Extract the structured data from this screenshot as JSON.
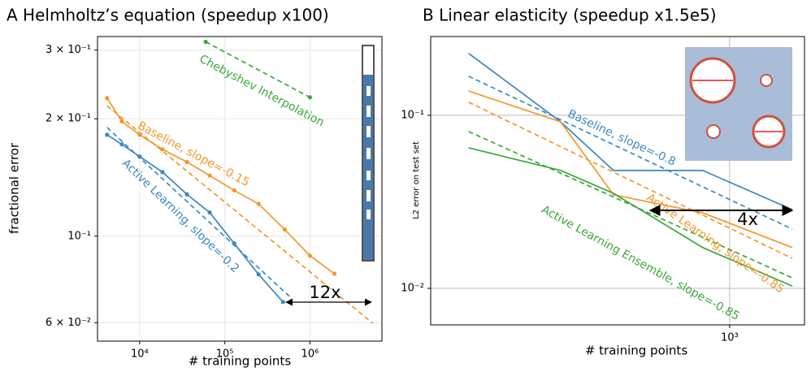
{
  "chart_data": [
    {
      "type": "line",
      "title": "A Helmholtz’s equation (speedup x100)",
      "xlabel": "# training points",
      "ylabel": "fractional error",
      "xscale": "log",
      "yscale": "log",
      "xlim": [
        3200,
        7000000
      ],
      "ylim": [
        0.0538,
        0.325
      ],
      "xticks": [
        {
          "value": 10000,
          "label": "10⁴"
        },
        {
          "value": 100000,
          "label": "10⁵"
        },
        {
          "value": 1000000,
          "label": "10⁶"
        }
      ],
      "yticks": [
        {
          "value": 0.06,
          "label": "6 × 10⁻²"
        },
        {
          "value": 0.1,
          "label": "10⁻¹"
        },
        {
          "value": 0.2,
          "label": "2 × 10⁻¹"
        },
        {
          "value": 0.3,
          "label": "3 × 10⁻¹"
        }
      ],
      "grid": true,
      "series": [
        {
          "color": "#3b88c4",
          "style": "solid",
          "markers": true,
          "x": [
            4140,
            6170,
            10000,
            18500,
            35900,
            66500,
            129000,
            249000,
            483000
          ],
          "values": [
            0.182,
            0.172,
            0.16,
            0.146,
            0.128,
            0.115,
            0.0958,
            0.0798,
            0.0678
          ]
        },
        {
          "color": "#f5962a",
          "style": "solid",
          "markers": true,
          "x": [
            4140,
            6170,
            10000,
            18500,
            35900,
            66500,
            129000,
            249000,
            505000,
            1000000,
            1940000
          ],
          "values": [
            0.226,
            0.197,
            0.182,
            0.167,
            0.155,
            0.143,
            0.131,
            0.121,
            0.104,
            0.0891,
            0.0801
          ]
        },
        {
          "color": "#3b88c4",
          "style": "dashed",
          "markers": false,
          "x": [
            4140,
            589000
          ],
          "values": [
            0.19,
            0.0697
          ]
        },
        {
          "color": "#f5962a",
          "style": "dashed",
          "markers": false,
          "x": [
            4140,
            5460000
          ],
          "values": [
            0.216,
            0.0598
          ]
        },
        {
          "color": "#3aa83a",
          "style": "dashed",
          "markers": true,
          "x": [
            59600,
            1000000
          ],
          "values": [
            0.315,
            0.227
          ]
        }
      ],
      "annotations": [
        "Chebyshev Interpolation",
        "Baseline, slope=-0.15",
        "Active Learning, slope=-0.2",
        "12x"
      ]
    },
    {
      "type": "line",
      "title": "B Linear elasticity (speedup x1.5e5)",
      "xlabel": "# training points",
      "ylabel": "L2 error on test set",
      "xscale": "log",
      "yscale": "log",
      "xlim": [
        184,
        1528
      ],
      "ylim": [
        0.00615,
        0.285
      ],
      "xticks": [
        {
          "value": 1000,
          "label": "10³"
        }
      ],
      "yticks": [
        {
          "value": 0.01,
          "label": "10⁻²"
        },
        {
          "value": 0.1,
          "label": "10⁻¹"
        }
      ],
      "grid": true,
      "series": [
        {
          "color": "#3b88c4",
          "style": "solid",
          "markers": false,
          "x": [
            228,
            384,
            518,
            859,
            1426
          ],
          "values": [
            0.228,
            0.0917,
            0.048,
            0.048,
            0.0285
          ]
        },
        {
          "color": "#3b88c4",
          "style": "dashed",
          "markers": false,
          "x": [
            228,
            1426
          ],
          "values": [
            0.168,
            0.022
          ]
        },
        {
          "color": "#f5962a",
          "style": "solid",
          "markers": false,
          "x": [
            228,
            384,
            518,
            859,
            1426
          ],
          "values": [
            0.138,
            0.0917,
            0.0347,
            0.0273,
            0.0172
          ]
        },
        {
          "color": "#f5962a",
          "style": "dashed",
          "markers": false,
          "x": [
            228,
            1426
          ],
          "values": [
            0.119,
            0.0149
          ]
        },
        {
          "color": "#3aa83a",
          "style": "solid",
          "markers": false,
          "x": [
            228,
            384,
            518,
            859,
            1426
          ],
          "values": [
            0.0649,
            0.048,
            0.0354,
            0.0172,
            0.0103
          ]
        },
        {
          "color": "#3aa83a",
          "style": "dashed",
          "markers": false,
          "x": [
            228,
            1426
          ],
          "values": [
            0.0806,
            0.0115
          ]
        }
      ],
      "annotations": [
        "Baseline, slope=-0.8",
        "Active Learning, slope=-0.85",
        "Active Learning Ensemble, slope=-0.85",
        "4x"
      ]
    }
  ]
}
